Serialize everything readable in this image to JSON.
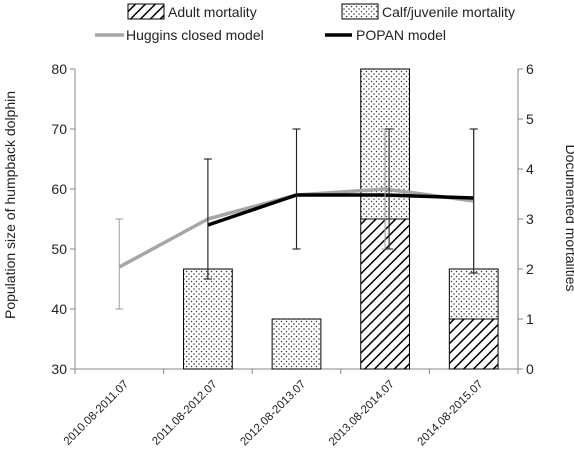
{
  "chart_data": {
    "type": "bar+line",
    "categories": [
      "2010.08-2011.07",
      "2011.08-2012.07",
      "2012.08-2013.07",
      "2013.08-2014.07",
      "2014.08-2015.07"
    ],
    "left_axis": {
      "label": "Population size of humpback dolphin",
      "ylim": [
        30,
        80
      ],
      "ticks": [
        "30",
        "40",
        "50",
        "60",
        "70",
        "80"
      ]
    },
    "right_axis": {
      "label": "Documented mortalities",
      "ylim": [
        0,
        6
      ],
      "ticks": [
        "0",
        "1",
        "2",
        "3",
        "4",
        "5",
        "6"
      ]
    },
    "bar_series": [
      {
        "name": "Adult mortality",
        "pattern": "diagonal-hatch",
        "values": [
          0,
          0,
          0,
          3,
          1
        ]
      },
      {
        "name": "Calf/juvenile mortality",
        "pattern": "dots",
        "values": [
          0,
          2,
          1,
          3,
          1
        ]
      }
    ],
    "line_series": [
      {
        "name": "Huggins closed model",
        "color": "#a6a6a6",
        "values": [
          47,
          55,
          59,
          60,
          58
        ],
        "err_low": [
          40,
          45,
          50,
          50,
          46
        ],
        "err_high": [
          55,
          65,
          70,
          70,
          70
        ]
      },
      {
        "name": "POPAN model",
        "color": "#000000",
        "values": [
          null,
          54,
          59,
          59,
          58.5
        ],
        "err_low": [
          null,
          45,
          50,
          50,
          46
        ],
        "err_high": [
          null,
          65,
          70,
          70,
          70
        ]
      }
    ],
    "grid": false,
    "legend_placement": "top"
  }
}
